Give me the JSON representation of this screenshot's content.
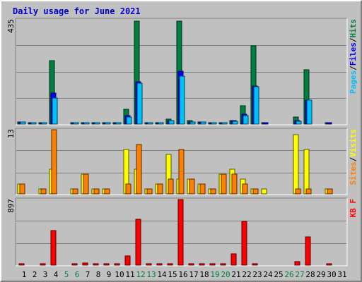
{
  "title": "Daily usage for June 2021",
  "chart_data": [
    {
      "type": "bar",
      "panel": "pages-files-hits",
      "max_label": "435",
      "ylim": [
        0,
        435
      ],
      "right_legend": [
        {
          "text": "Pages",
          "color": "#00c0ff"
        },
        {
          "text": "/",
          "color": "#000000"
        },
        {
          "text": "Files",
          "color": "#0000ff"
        },
        {
          "text": "/",
          "color": "#000000"
        },
        {
          "text": "Hits",
          "color": "#008040"
        }
      ],
      "series": [
        {
          "name": "Hits",
          "color": "#008040",
          "values": [
            8,
            5,
            5,
            265,
            0,
            5,
            7,
            5,
            5,
            5,
            63,
            430,
            5,
            7,
            20,
            430,
            15,
            10,
            5,
            5,
            15,
            75,
            325,
            5,
            0,
            0,
            30,
            225,
            0,
            5,
            0
          ]
        },
        {
          "name": "Files",
          "color": "#0000ff",
          "values": [
            8,
            5,
            5,
            128,
            0,
            5,
            7,
            5,
            5,
            5,
            35,
            175,
            5,
            7,
            15,
            220,
            10,
            10,
            5,
            5,
            15,
            40,
            160,
            5,
            0,
            0,
            15,
            100,
            0,
            5,
            0
          ]
        },
        {
          "name": "Pages",
          "color": "#00c0ff",
          "values": [
            8,
            5,
            5,
            110,
            0,
            5,
            7,
            5,
            5,
            5,
            30,
            170,
            5,
            7,
            15,
            200,
            8,
            8,
            5,
            5,
            12,
            35,
            155,
            0,
            0,
            0,
            12,
            100,
            0,
            0,
            0
          ]
        }
      ]
    },
    {
      "type": "bar",
      "panel": "visits-sites",
      "max_label": "13",
      "ylim": [
        0,
        13
      ],
      "right_legend": [
        {
          "text": "Sites",
          "color": "#ff8000"
        },
        {
          "text": "/",
          "color": "#000000"
        },
        {
          "text": "Visits",
          "color": "#ffff00"
        }
      ],
      "series": [
        {
          "name": "Visits",
          "color": "#ffff00",
          "values": [
            2,
            0,
            1,
            5,
            0,
            1,
            4,
            1,
            1,
            0,
            9,
            5,
            1,
            2,
            8,
            3,
            3,
            2,
            1,
            4,
            5,
            3,
            1,
            1,
            0,
            0,
            12,
            9,
            0,
            1,
            0
          ]
        },
        {
          "name": "Sites",
          "color": "#ff8000",
          "values": [
            2,
            0,
            1,
            13,
            0,
            1,
            4,
            1,
            1,
            0,
            2,
            10,
            1,
            2,
            3,
            9,
            3,
            2,
            1,
            4,
            4,
            2,
            1,
            0,
            0,
            0,
            1,
            1,
            0,
            1,
            0
          ]
        }
      ]
    },
    {
      "type": "bar",
      "panel": "kbytes",
      "max_label": "897",
      "ylim": [
        0,
        897
      ],
      "right_legend": [
        {
          "text": "KB F",
          "color": "#ff0000"
        }
      ],
      "series": [
        {
          "name": "KB F",
          "color": "#ff0000",
          "values": [
            10,
            0,
            10,
            470,
            0,
            10,
            25,
            10,
            10,
            10,
            130,
            630,
            10,
            10,
            20,
            897,
            10,
            10,
            10,
            10,
            150,
            600,
            10,
            0,
            0,
            0,
            45,
            385,
            0,
            10,
            0
          ]
        }
      ]
    }
  ],
  "x_labels": [
    {
      "day": "1",
      "color": "#000000"
    },
    {
      "day": "2",
      "color": "#000000"
    },
    {
      "day": "3",
      "color": "#000000"
    },
    {
      "day": "4",
      "color": "#000000"
    },
    {
      "day": "5",
      "color": "#008040"
    },
    {
      "day": "6",
      "color": "#008040"
    },
    {
      "day": "7",
      "color": "#000000"
    },
    {
      "day": "8",
      "color": "#000000"
    },
    {
      "day": "9",
      "color": "#000000"
    },
    {
      "day": "10",
      "color": "#000000"
    },
    {
      "day": "11",
      "color": "#000000"
    },
    {
      "day": "12",
      "color": "#008040"
    },
    {
      "day": "13",
      "color": "#008040"
    },
    {
      "day": "14",
      "color": "#000000"
    },
    {
      "day": "15",
      "color": "#000000"
    },
    {
      "day": "16",
      "color": "#000000"
    },
    {
      "day": "17",
      "color": "#000000"
    },
    {
      "day": "18",
      "color": "#000000"
    },
    {
      "day": "19",
      "color": "#008040"
    },
    {
      "day": "20",
      "color": "#008040"
    },
    {
      "day": "21",
      "color": "#000000"
    },
    {
      "day": "22",
      "color": "#000000"
    },
    {
      "day": "23",
      "color": "#000000"
    },
    {
      "day": "24",
      "color": "#000000"
    },
    {
      "day": "25",
      "color": "#000000"
    },
    {
      "day": "26",
      "color": "#008040"
    },
    {
      "day": "27",
      "color": "#008040"
    },
    {
      "day": "28",
      "color": "#000000"
    },
    {
      "day": "29",
      "color": "#000000"
    },
    {
      "day": "30",
      "color": "#000000"
    },
    {
      "day": "31",
      "color": "#000000"
    }
  ]
}
